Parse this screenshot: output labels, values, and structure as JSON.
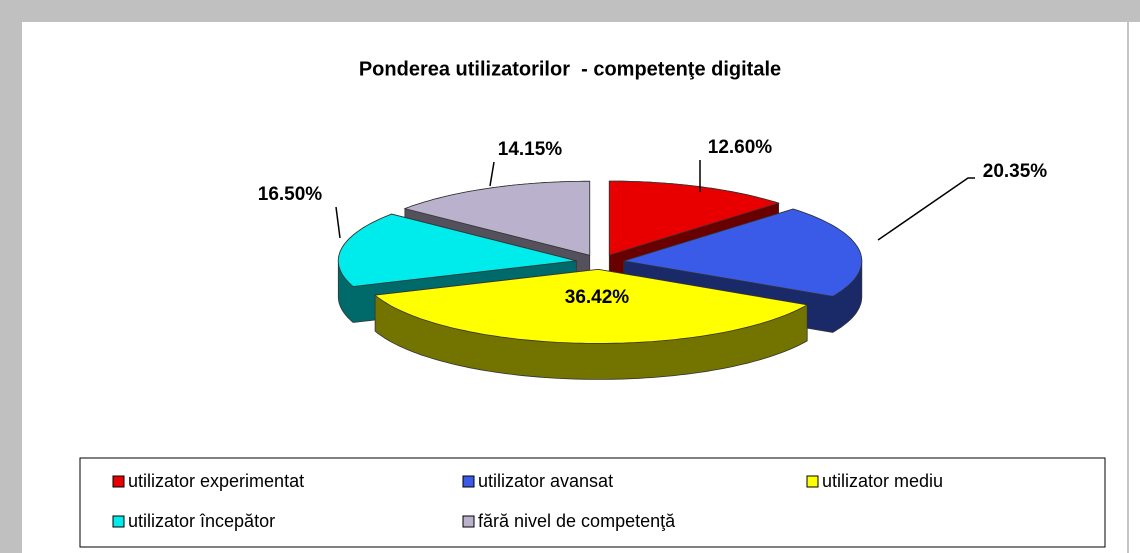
{
  "chart_data": {
    "type": "pie",
    "title": "Ponderea utilizatorilor  - competenţe digitale",
    "categories": [
      "utilizator experimentat",
      "utilizator avansat",
      "utilizator mediu",
      "utilizator începător",
      "fără nivel de competenţă"
    ],
    "values": [
      12.6,
      20.35,
      36.42,
      16.5,
      14.15
    ],
    "value_labels": [
      "12.60%",
      "20.35%",
      "36.42%",
      "16.50%",
      "14.15%"
    ],
    "colors": [
      "#e80000",
      "#3a5ae8",
      "#ffff00",
      "#00ecec",
      "#bab2cc"
    ],
    "legend": "bottom"
  }
}
